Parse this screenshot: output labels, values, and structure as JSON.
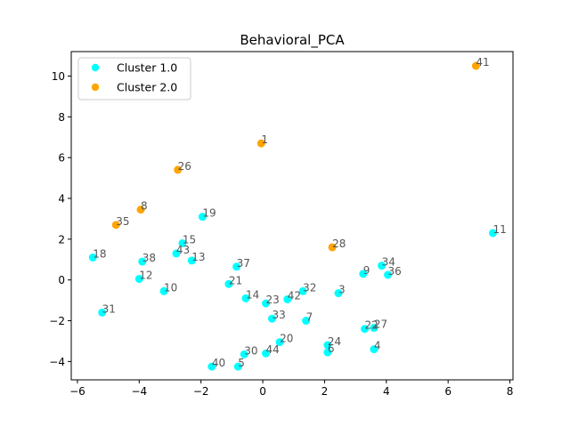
{
  "chart_data": {
    "type": "scatter",
    "title": "Behavioral_PCA",
    "xlabel": "",
    "ylabel": "",
    "xlim": [
      -6.2,
      8.1
    ],
    "ylim": [
      -4.9,
      11.2
    ],
    "xticks": [
      -6,
      -4,
      -2,
      0,
      2,
      4,
      6,
      8
    ],
    "yticks": [
      -4,
      -2,
      0,
      2,
      4,
      6,
      8,
      10
    ],
    "grid": false,
    "legend_position": "top-left",
    "series": [
      {
        "name": "Cluster 1.0",
        "color": "#00ffff",
        "points": [
          {
            "label": "18",
            "x": -5.5,
            "y": 1.1
          },
          {
            "label": "31",
            "x": -5.2,
            "y": -1.6
          },
          {
            "label": "38",
            "x": -3.9,
            "y": 0.9
          },
          {
            "label": "12",
            "x": -4.0,
            "y": 0.05
          },
          {
            "label": "10",
            "x": -3.2,
            "y": -0.55
          },
          {
            "label": "43",
            "x": -2.8,
            "y": 1.3
          },
          {
            "label": "15",
            "x": -2.6,
            "y": 1.8
          },
          {
            "label": "13",
            "x": -2.3,
            "y": 0.95
          },
          {
            "label": "19",
            "x": -1.95,
            "y": 3.1
          },
          {
            "label": "40",
            "x": -1.65,
            "y": -4.25
          },
          {
            "label": "5",
            "x": -0.8,
            "y": -4.25
          },
          {
            "label": "30",
            "x": -0.6,
            "y": -3.65
          },
          {
            "label": "37",
            "x": -0.85,
            "y": 0.65
          },
          {
            "label": "21",
            "x": -1.1,
            "y": -0.2
          },
          {
            "label": "14",
            "x": -0.55,
            "y": -0.9
          },
          {
            "label": "44",
            "x": 0.1,
            "y": -3.6
          },
          {
            "label": "20",
            "x": 0.55,
            "y": -3.05
          },
          {
            "label": "23",
            "x": 0.1,
            "y": -1.15
          },
          {
            "label": "33",
            "x": 0.3,
            "y": -1.9
          },
          {
            "label": "42",
            "x": 0.8,
            "y": -0.95
          },
          {
            "label": "32",
            "x": 1.3,
            "y": -0.55
          },
          {
            "label": "7",
            "x": 1.4,
            "y": -2.0
          },
          {
            "label": "24",
            "x": 2.1,
            "y": -3.2
          },
          {
            "label": "6",
            "x": 2.1,
            "y": -3.55
          },
          {
            "label": "3",
            "x": 2.45,
            "y": -0.65
          },
          {
            "label": "9",
            "x": 3.25,
            "y": 0.3
          },
          {
            "label": "22",
            "x": 3.3,
            "y": -2.4
          },
          {
            "label": "27",
            "x": 3.6,
            "y": -2.35
          },
          {
            "label": "4",
            "x": 3.6,
            "y": -3.4
          },
          {
            "label": "34",
            "x": 3.85,
            "y": 0.7
          },
          {
            "label": "36",
            "x": 4.05,
            "y": 0.25
          },
          {
            "label": "11",
            "x": 7.45,
            "y": 2.3
          }
        ]
      },
      {
        "name": "Cluster 2.0",
        "color": "#ffa500",
        "points": [
          {
            "label": "35",
            "x": -4.75,
            "y": 2.7
          },
          {
            "label": "8",
            "x": -3.95,
            "y": 3.45
          },
          {
            "label": "26",
            "x": -2.75,
            "y": 5.4
          },
          {
            "label": "1",
            "x": -0.05,
            "y": 6.7
          },
          {
            "label": "28",
            "x": 2.25,
            "y": 1.6
          },
          {
            "label": "41",
            "x": 6.9,
            "y": 10.5
          }
        ]
      }
    ]
  }
}
